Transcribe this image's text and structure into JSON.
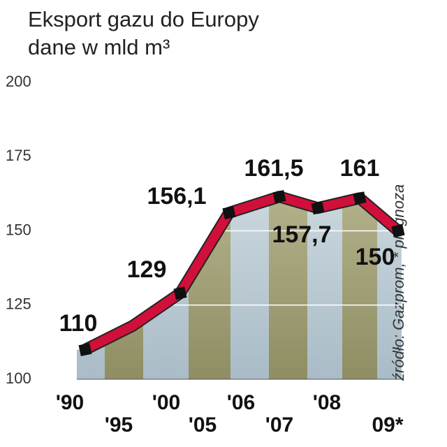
{
  "chart_data": {
    "type": "line",
    "title": "Eksport gazu do Europy",
    "subtitle": "dane w mld m³",
    "source": "źródło: Gazprom, * prognoza",
    "categories": [
      "'90",
      "'95",
      "'00",
      "'05",
      "'06",
      "'07",
      "'08",
      "09*"
    ],
    "series": [
      {
        "name": "Eksport gazu",
        "color": "#d0103a",
        "values": [
          110,
          118,
          129,
          156.1,
          161.5,
          157.7,
          161,
          150
        ],
        "value_labels": [
          "110",
          null,
          "129",
          "156,1",
          "161,5",
          "157,7",
          "161",
          "150"
        ]
      }
    ],
    "ylim": [
      100,
      200
    ],
    "yticks": [
      100,
      125,
      150,
      175,
      200
    ],
    "grid": true
  }
}
